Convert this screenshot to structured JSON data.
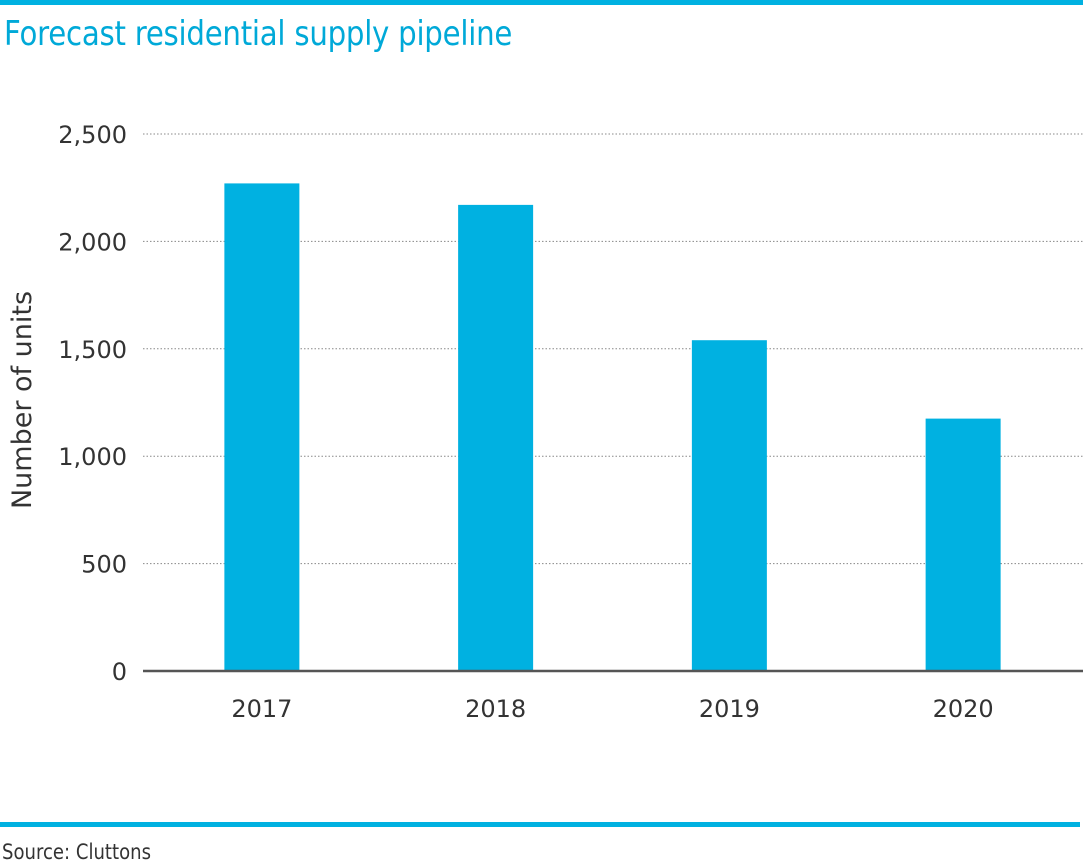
{
  "header": {
    "title": "Forecast residential supply pipeline"
  },
  "footer": {
    "source": "Source: Cluttons"
  },
  "colors": {
    "accent": "#00b1e1",
    "title": "#00a9d8",
    "bar": "#00b1e1",
    "text": "#333333",
    "axis": "#555555",
    "grid": "#888888"
  },
  "chart_data": {
    "type": "bar",
    "title": "Forecast residential supply pipeline",
    "xlabel": "",
    "ylabel": "Number of units",
    "categories": [
      "2017",
      "2018",
      "2019",
      "2020"
    ],
    "values": [
      2270,
      2170,
      1540,
      1175
    ],
    "ylim": [
      0,
      2500
    ],
    "yticks": [
      0,
      500,
      1000,
      1500,
      2000,
      2500
    ],
    "ytick_labels": [
      "0",
      "500",
      "1,000",
      "1,500",
      "2,000",
      "2,500"
    ],
    "grid": true,
    "grid_style": "dotted horizontal",
    "legend": "none",
    "source": "Source: Cluttons"
  }
}
